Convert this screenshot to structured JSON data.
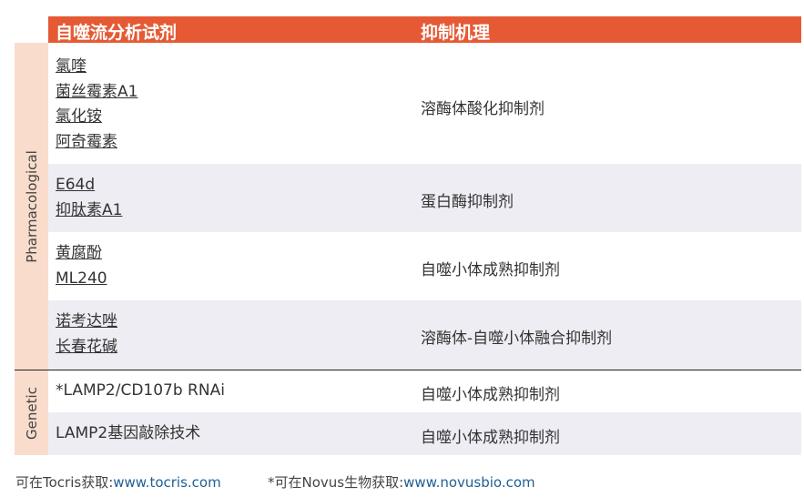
{
  "header": {
    "col1": "自噬流分析试剂",
    "col2": "抑制机理"
  },
  "groups": [
    {
      "label": "Pharmacological",
      "rows": [
        {
          "reagents": [
            "氯喹",
            "菌丝霉素A1",
            "氯化铵",
            "阿奇霉素"
          ],
          "mechanism": "溶酶体酸化抑制剂"
        },
        {
          "reagents": [
            "E64d",
            "抑肽素A1"
          ],
          "mechanism": "蛋白酶抑制剂"
        },
        {
          "reagents": [
            "黄腐酚",
            "ML240"
          ],
          "mechanism": "自噬小体成熟抑制剂"
        },
        {
          "reagents": [
            "诺考达唑",
            "长春花碱"
          ],
          "mechanism": "溶酶体-自噬小体融合抑制剂"
        }
      ]
    },
    {
      "label": "Genetic",
      "rows": [
        {
          "reagents": [
            "*LAMP2/CD107b RNAi"
          ],
          "mechanism": "自噬小体成熟抑制剂"
        },
        {
          "reagents": [
            "LAMP2基因敲除技术"
          ],
          "mechanism": "自噬小体成熟抑制剂"
        }
      ]
    }
  ],
  "footer": {
    "tocris_label": "可在Tocris获取:",
    "tocris_url": "www.tocris.com",
    "novus_label": "*可在Novus生物获取:",
    "novus_url": "www.novusbio.com"
  },
  "colors": {
    "header": "#e55a34",
    "side": "#f9dccb",
    "alt_row": "#ededf3",
    "link": "#1f5f95"
  }
}
